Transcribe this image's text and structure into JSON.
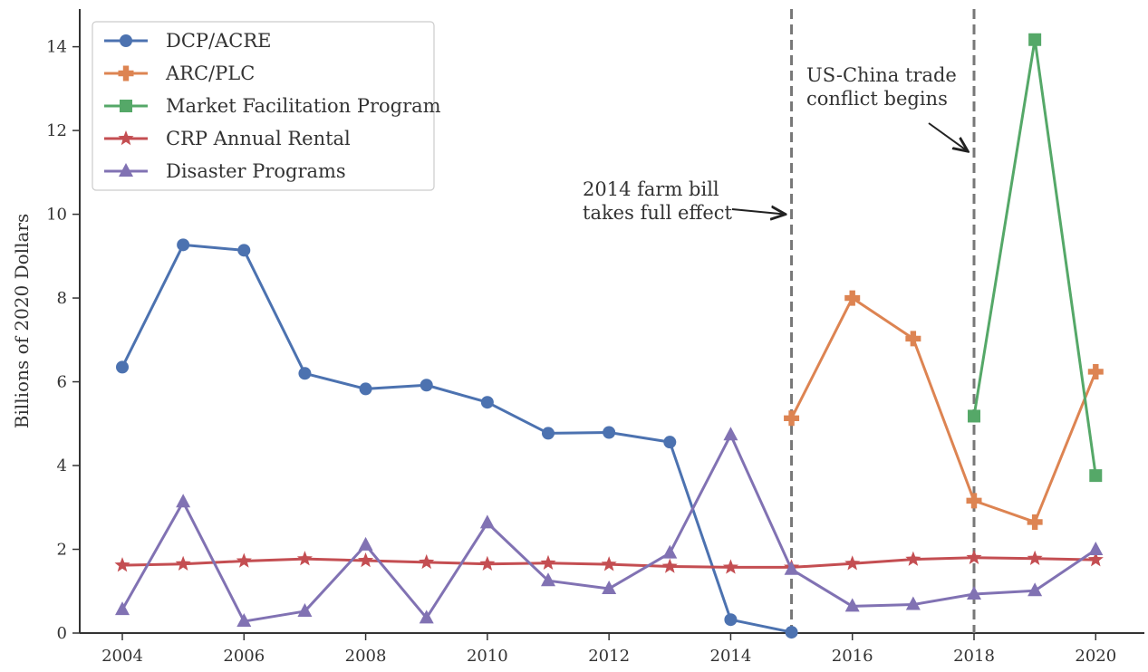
{
  "chart_data": {
    "type": "line",
    "title": "",
    "xlabel": "",
    "ylabel": "Billions of 2020 Dollars",
    "xlim": [
      2003.3,
      2020.8
    ],
    "ylim": [
      0,
      14.9
    ],
    "x_ticks": [
      2004,
      2006,
      2008,
      2010,
      2012,
      2014,
      2016,
      2018,
      2020
    ],
    "y_ticks": [
      0,
      2,
      4,
      6,
      8,
      10,
      12,
      14
    ],
    "grid": false,
    "legend_position": "top-left",
    "series": [
      {
        "name": "DCP/ACRE",
        "color": "#4C72B0",
        "marker": "circle",
        "x": [
          2004,
          2005,
          2006,
          2007,
          2008,
          2009,
          2010,
          2011,
          2012,
          2013,
          2014,
          2015
        ],
        "values": [
          6.35,
          9.27,
          9.14,
          6.2,
          5.83,
          5.92,
          5.51,
          4.77,
          4.79,
          4.56,
          0.32,
          0.02
        ]
      },
      {
        "name": "ARC/PLC",
        "color": "#DD8452",
        "marker": "plus",
        "x": [
          2015,
          2016,
          2017,
          2018,
          2019,
          2020
        ],
        "values": [
          5.13,
          8.0,
          7.03,
          3.16,
          2.65,
          6.24
        ]
      },
      {
        "name": "Market Facilitation Program",
        "color": "#55A868",
        "marker": "square",
        "x": [
          2018,
          2019,
          2020
        ],
        "values": [
          5.18,
          14.17,
          3.76
        ]
      },
      {
        "name": "CRP Annual Rental",
        "color": "#C44E52",
        "marker": "star",
        "x": [
          2004,
          2005,
          2006,
          2007,
          2008,
          2009,
          2010,
          2011,
          2012,
          2013,
          2014,
          2015,
          2016,
          2017,
          2018,
          2019,
          2020
        ],
        "values": [
          1.62,
          1.65,
          1.72,
          1.77,
          1.73,
          1.69,
          1.65,
          1.67,
          1.64,
          1.59,
          1.57,
          1.57,
          1.66,
          1.76,
          1.8,
          1.78,
          1.75
        ]
      },
      {
        "name": "Disaster Programs",
        "color": "#8172B3",
        "marker": "triangle",
        "x": [
          2004,
          2005,
          2006,
          2007,
          2008,
          2009,
          2010,
          2011,
          2012,
          2013,
          2014,
          2015,
          2016,
          2017,
          2018,
          2019,
          2020
        ],
        "values": [
          0.56,
          3.13,
          0.28,
          0.52,
          2.1,
          0.36,
          2.63,
          1.25,
          1.06,
          1.91,
          4.73,
          1.52,
          0.64,
          0.68,
          0.93,
          1.01,
          1.99
        ]
      }
    ],
    "vertical_lines": [
      2015,
      2018
    ],
    "annotations": [
      {
        "lines": [
          "2014 farm bill",
          "takes full effect"
        ],
        "point_x": 2014.9,
        "point_y": 10.0
      },
      {
        "lines": [
          "US-China trade",
          "conflict begins"
        ],
        "point_x": 2017.9,
        "point_y": 11.5
      }
    ]
  }
}
